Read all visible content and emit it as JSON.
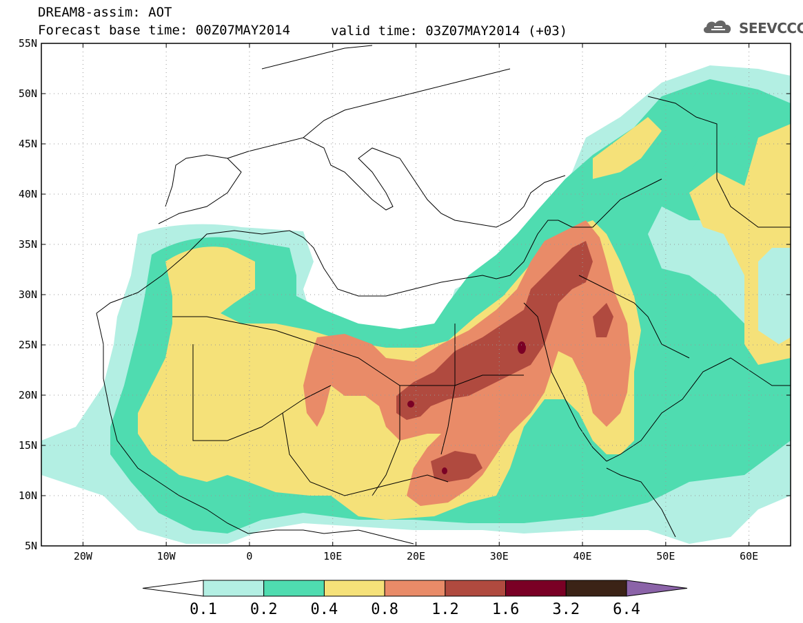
{
  "header": {
    "title_line1": "DREAM8-assim: AOT",
    "title_line2": "Forecast base time: 00Z07MAY2014",
    "valid_time": "valid time: 03Z07MAY2014 (+03)",
    "logo_text": "SEEVCCC",
    "logo_icon": "cloud-icon"
  },
  "map": {
    "lon_range": [
      -25,
      65
    ],
    "lat_range": [
      5,
      55
    ],
    "lat_labels": [
      "55N",
      "50N",
      "45N",
      "40N",
      "35N",
      "30N",
      "25N",
      "20N",
      "15N",
      "10N",
      "5N"
    ],
    "lat_values": [
      55,
      50,
      45,
      40,
      35,
      30,
      25,
      20,
      15,
      10,
      5
    ],
    "lon_labels": [
      "20W",
      "10W",
      "0",
      "10E",
      "20E",
      "30E",
      "40E",
      "50E",
      "60E"
    ],
    "lon_values": [
      -20,
      -10,
      0,
      10,
      20,
      30,
      40,
      50,
      60
    ],
    "grid": "dotted"
  },
  "colorbar": {
    "labels": [
      "0.1",
      "0.2",
      "0.4",
      "0.8",
      "1.2",
      "1.6",
      "3.2",
      "6.4"
    ],
    "colors": [
      "#ffffff",
      "#b3efe3",
      "#4fdcb0",
      "#f5e179",
      "#e98b68",
      "#b04a3f",
      "#7a0025",
      "#3b2316",
      "#8b63a8"
    ]
  },
  "colors": {
    "lvl1": "#b3efe3",
    "lvl2": "#4fdcb0",
    "lvl3": "#f5e179",
    "lvl4": "#e98b68",
    "lvl5": "#b04a3f",
    "lvl6": "#7a0025"
  }
}
